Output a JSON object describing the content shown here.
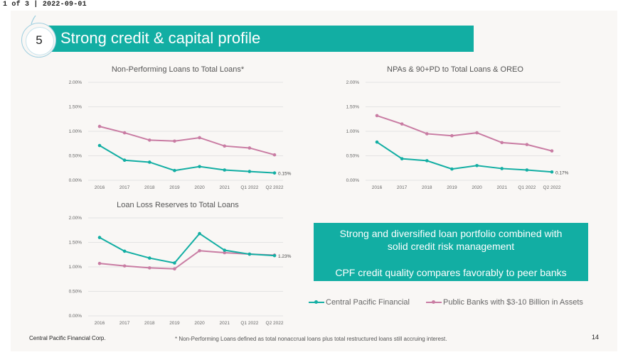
{
  "viewer": {
    "page_indicator": "1 of 3",
    "separator": "|",
    "date": "2022-09-01"
  },
  "slide": {
    "section_number": "5",
    "title": "Strong credit & capital profile",
    "company": "Central Pacific Financial Corp.",
    "footnote": "* Non-Performing Loans defined as total nonaccrual loans plus total restructured loans still accruing interest.",
    "page_number": "14",
    "accent_color": "#12aea3"
  },
  "callout": {
    "line1": "Strong and diversified loan portfolio combined with",
    "line2": "solid credit risk management",
    "line3": "CPF credit quality compares favorably to peer banks"
  },
  "legend": {
    "cpf": "Central Pacific Financial",
    "peers": "Public Banks with $3-10 Billion in Assets"
  },
  "chart_data": [
    {
      "type": "line",
      "title": "Non-Performing Loans to Total Loans*",
      "categories": [
        "2016",
        "2017",
        "2018",
        "2019",
        "2020",
        "2021",
        "Q1 2022",
        "Q2 2022"
      ],
      "yticks": [
        "0.00%",
        "0.50%",
        "1.00%",
        "1.50%",
        "2.00%"
      ],
      "ylim": [
        0,
        2.0
      ],
      "series": [
        {
          "name": "Central Pacific Financial",
          "color": "#12aea3",
          "values": [
            0.71,
            0.41,
            0.37,
            0.2,
            0.28,
            0.21,
            0.18,
            0.15
          ],
          "end_label": "0.15%"
        },
        {
          "name": "Public Banks with $3-10 Billion in Assets",
          "color": "#c97ca3",
          "values": [
            1.1,
            0.97,
            0.82,
            0.8,
            0.87,
            0.7,
            0.66,
            0.52
          ]
        }
      ]
    },
    {
      "type": "line",
      "title": "NPAs & 90+PD to Total Loans & OREO",
      "categories": [
        "2016",
        "2017",
        "2018",
        "2019",
        "2020",
        "2021",
        "Q1 2022",
        "Q2 2022"
      ],
      "yticks": [
        "0.00%",
        "0.50%",
        "1.00%",
        "1.50%",
        "2.00%"
      ],
      "ylim": [
        0,
        2.0
      ],
      "series": [
        {
          "name": "Central Pacific Financial",
          "color": "#12aea3",
          "values": [
            0.78,
            0.44,
            0.4,
            0.23,
            0.3,
            0.24,
            0.21,
            0.17
          ],
          "end_label": "0.17%"
        },
        {
          "name": "Public Banks with $3-10 Billion in Assets",
          "color": "#c97ca3",
          "values": [
            1.32,
            1.15,
            0.95,
            0.91,
            0.97,
            0.77,
            0.73,
            0.6
          ]
        }
      ]
    },
    {
      "type": "line",
      "title": "Loan Loss Reserves to Total Loans",
      "categories": [
        "2016",
        "2017",
        "2018",
        "2019",
        "2020",
        "2021",
        "Q1 2022",
        "Q2 2022"
      ],
      "yticks": [
        "0.00%",
        "0.50%",
        "1.00%",
        "1.50%",
        "2.00%"
      ],
      "ylim": [
        0,
        2.0
      ],
      "series": [
        {
          "name": "Central Pacific Financial",
          "color": "#12aea3",
          "values": [
            1.6,
            1.32,
            1.18,
            1.08,
            1.68,
            1.34,
            1.26,
            1.23
          ],
          "end_label": "1.23%"
        },
        {
          "name": "Public Banks with $3-10 Billion in Assets",
          "color": "#c97ca3",
          "values": [
            1.07,
            1.02,
            0.98,
            0.96,
            1.33,
            1.29,
            1.26,
            1.24
          ]
        }
      ]
    }
  ]
}
